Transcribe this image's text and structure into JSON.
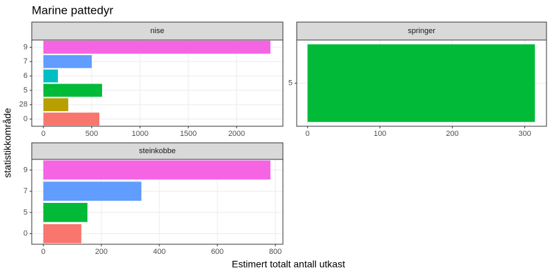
{
  "title": "Marine pattedyr",
  "xlabel": "Estimert totalt antall utkast",
  "ylabel": "statistikkområde",
  "chart_data": [
    {
      "type": "bar",
      "orientation": "horizontal",
      "title": "nise",
      "categories": [
        "0",
        "28",
        "5",
        "6",
        "7",
        "9"
      ],
      "values": [
        579,
        257,
        607,
        150,
        500,
        2350
      ],
      "colors": [
        "#F8766D",
        "#B79F00",
        "#00BA38",
        "#00BFC4",
        "#619CFF",
        "#F564E3"
      ],
      "xlim": [
        -121,
        2479
      ],
      "xticks": [
        0,
        500,
        1000,
        1500,
        2000
      ],
      "grid": true
    },
    {
      "type": "bar",
      "orientation": "horizontal",
      "title": "springer",
      "categories": [
        "5"
      ],
      "values": [
        314
      ],
      "colors": [
        "#00BA38"
      ],
      "xlim": [
        -15,
        330
      ],
      "xticks": [
        0,
        100,
        200,
        300
      ],
      "grid": true
    },
    {
      "type": "bar",
      "orientation": "horizontal",
      "title": "steinkobbe",
      "categories": [
        "0",
        "5",
        "7",
        "9"
      ],
      "values": [
        131,
        152,
        338,
        783
      ],
      "colors": [
        "#F8766D",
        "#00BA38",
        "#619CFF",
        "#F564E3"
      ],
      "xlim": [
        -40,
        826
      ],
      "xticks": [
        0,
        200,
        400,
        600,
        800
      ],
      "grid": true
    }
  ]
}
